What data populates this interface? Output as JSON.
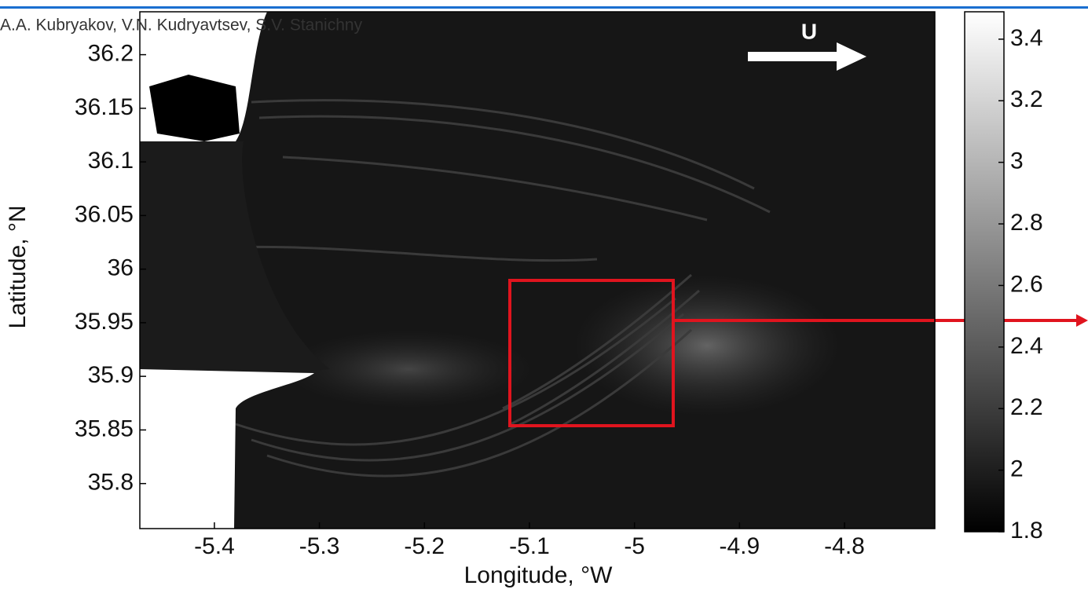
{
  "authors": "A.A. Kubryakov, V.N. Kudryavtsev, S.V. Stanichny",
  "figure": {
    "arrow_label": "U",
    "x_label": "Longitude, °W",
    "y_label": "Latitude, °N",
    "xlim": [
      -5.471,
      -4.714
    ],
    "xticks": [
      -5.4,
      -5.3,
      -5.2,
      -5.1,
      -5,
      -4.9,
      -4.8
    ],
    "ylim": [
      35.758,
      36.24
    ],
    "yticks": [
      36.2,
      36.15,
      36.1,
      36.05,
      36,
      35.95,
      35.9,
      35.85,
      35.8
    ],
    "colorbar_lim": [
      1.8,
      3.489
    ],
    "colorbar_ticks": [
      3.4,
      3.2,
      3,
      2.8,
      2.6,
      2.4,
      2.2,
      2,
      1.8
    ]
  }
}
